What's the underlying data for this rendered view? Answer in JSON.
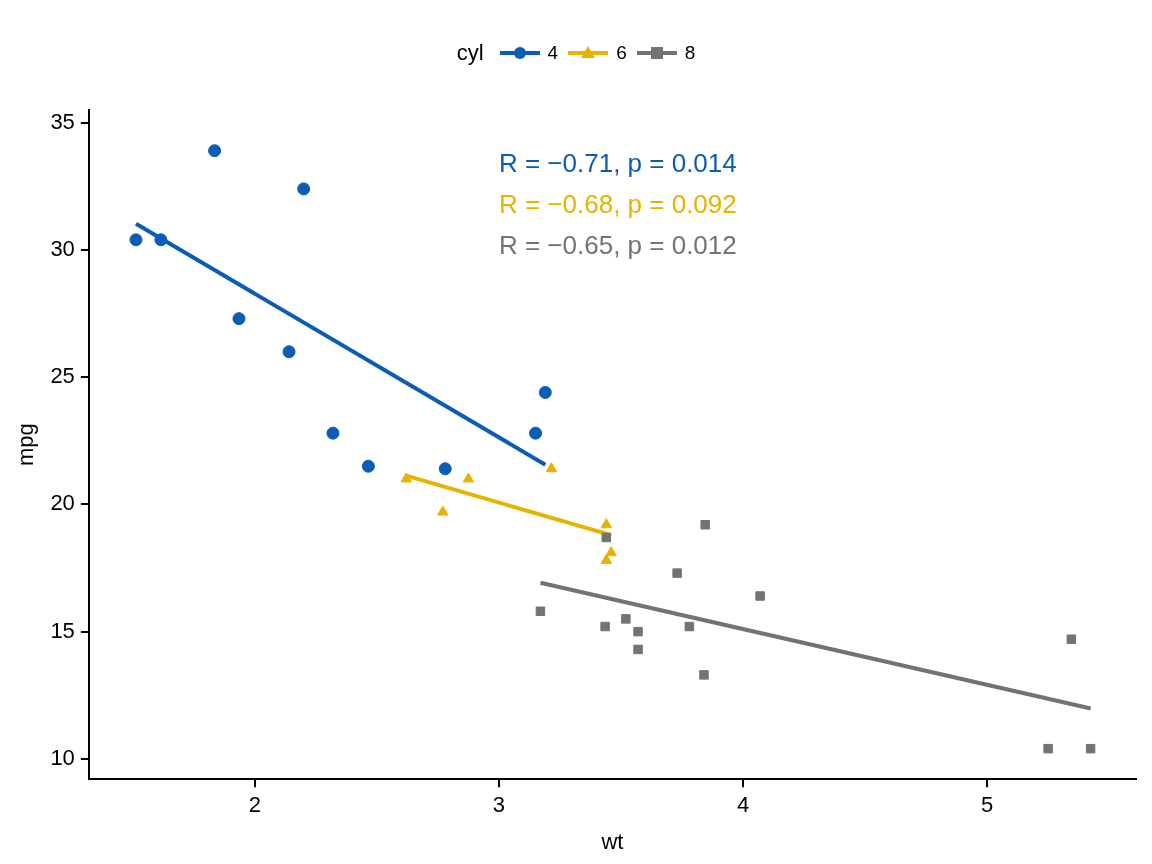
{
  "chart_data": {
    "type": "scatter",
    "xlabel": "wt",
    "ylabel": "mpg",
    "legend_title": "cyl",
    "legend": "top",
    "grid": false,
    "xlim": [
      1.32,
      5.61
    ],
    "xticks": [
      2,
      3,
      4,
      5
    ],
    "ylim": [
      9.2,
      35.5
    ],
    "yticks": [
      10,
      15,
      20,
      25,
      30,
      35
    ],
    "annotations": [
      "R = −0.71, p = 0.014",
      "R = −0.68, p = 0.092",
      "R = −0.65, p = 0.012"
    ],
    "series": [
      {
        "name": "4",
        "marker": "circle",
        "color": "#0b5cb5",
        "x": [
          2.32,
          3.19,
          3.15,
          2.2,
          1.615,
          1.835,
          2.465,
          1.935,
          2.14,
          1.513,
          2.78
        ],
        "values": [
          22.8,
          24.4,
          22.8,
          32.4,
          30.4,
          33.9,
          21.5,
          27.3,
          26.0,
          30.4,
          21.4
        ]
      },
      {
        "name": "6",
        "marker": "triangle",
        "color": "#e8b200",
        "x": [
          2.62,
          2.875,
          3.215,
          3.46,
          3.44,
          3.44,
          2.77
        ],
        "values": [
          21.0,
          21.0,
          21.4,
          18.1,
          19.2,
          17.8,
          19.7
        ]
      },
      {
        "name": "8",
        "marker": "square",
        "color": "#737373",
        "x": [
          3.44,
          3.57,
          4.07,
          3.73,
          3.78,
          5.25,
          5.424,
          5.345,
          3.52,
          3.435,
          3.84,
          3.845,
          3.17,
          3.57
        ],
        "values": [
          18.7,
          14.3,
          16.4,
          17.3,
          15.2,
          10.4,
          10.4,
          14.7,
          15.5,
          15.2,
          13.3,
          19.2,
          15.8,
          15.0
        ]
      },
      {
        "type": "line",
        "marker": "none",
        "color": "#0b5cb5",
        "x": [
          1.513,
          3.19
        ],
        "values": [
          31.03,
          21.56
        ]
      },
      {
        "type": "line",
        "marker": "none",
        "color": "#e8b200",
        "x": [
          2.62,
          3.46
        ],
        "values": [
          21.13,
          18.79
        ]
      },
      {
        "type": "line",
        "marker": "none",
        "color": "#737373",
        "x": [
          3.17,
          5.424
        ],
        "values": [
          16.92,
          11.98
        ]
      }
    ]
  }
}
